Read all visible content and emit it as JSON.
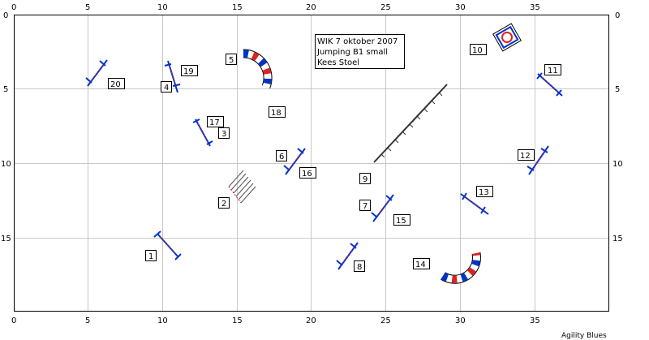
{
  "info_box": {
    "lines": [
      "WIK 7 oktober 2007",
      "Jumping B1 small",
      "Kees Stoel"
    ]
  },
  "credit": "Agility Blues",
  "ruler": {
    "x_labels": [
      "0",
      "5",
      "10",
      "15",
      "20",
      "25",
      "30",
      "35"
    ],
    "y_labels": [
      "0",
      "5",
      "10",
      "15"
    ],
    "x_bottom_labels": [
      "0",
      "5",
      "10",
      "15",
      "20",
      "25",
      "30",
      "35"
    ]
  },
  "colors": {
    "bar_blue": "#0033cc",
    "bar_red": "#dd2222",
    "grid": "#c8c8c8",
    "frame": "#000000"
  },
  "obstacles": [
    {
      "id": "jump-1",
      "type": "jump",
      "label": "1"
    },
    {
      "id": "weave-2",
      "type": "weave",
      "label": "2"
    },
    {
      "id": "jump-3",
      "type": "jump",
      "label": "3"
    },
    {
      "id": "jump-4",
      "type": "jump",
      "label": "4"
    },
    {
      "id": "tunnel-5",
      "type": "tunnel",
      "label": "5"
    },
    {
      "id": "jump-6",
      "type": "jump",
      "label": "6"
    },
    {
      "id": "jump-7",
      "type": "jump",
      "label": "7"
    },
    {
      "id": "jump-8",
      "type": "jump",
      "label": "8"
    },
    {
      "id": "dogwalk-9",
      "type": "dogwalk",
      "label": "9"
    },
    {
      "id": "tire-10",
      "type": "tire",
      "label": "10"
    },
    {
      "id": "jump-11",
      "type": "jump",
      "label": "11"
    },
    {
      "id": "jump-12",
      "type": "jump",
      "label": "12"
    },
    {
      "id": "jump-13",
      "type": "jump",
      "label": "13"
    },
    {
      "id": "tunnel-14",
      "type": "tunnel",
      "label": "14"
    },
    {
      "id": "jump-15",
      "type": "jump",
      "label": "15"
    },
    {
      "id": "jump-16",
      "type": "jump",
      "label": "16"
    },
    {
      "id": "jump-17",
      "type": "jump",
      "label": "17"
    },
    {
      "id": "jump-18",
      "type": "jump",
      "label": "18"
    },
    {
      "id": "jump-19",
      "type": "jump",
      "label": "19"
    },
    {
      "id": "jump-20",
      "type": "jump",
      "label": "20"
    }
  ]
}
